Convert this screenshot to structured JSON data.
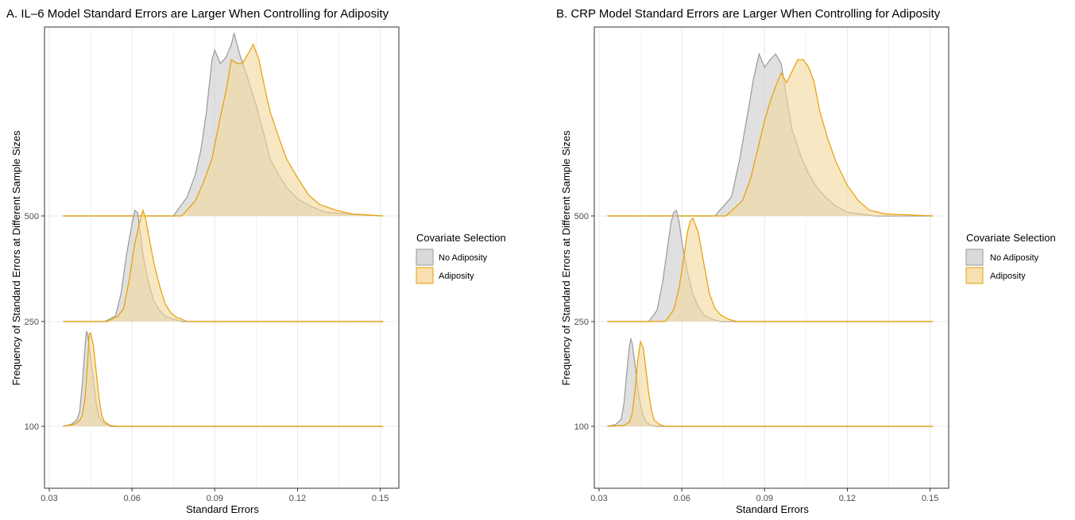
{
  "chart_data": [
    {
      "type": "ridgeline-density",
      "title": "A. IL–6 Model Standard Errors are Larger When Controlling for Adiposity",
      "xlabel": "Standard Errors",
      "ylabel": "Frequency of Standard Errors at Different Sample Sizes",
      "xlim": [
        0.03,
        0.155
      ],
      "x_ticks": [
        "0.03",
        "0.06",
        "0.09",
        "0.12",
        "0.15"
      ],
      "x_tick_values": [
        0.03,
        0.06,
        0.09,
        0.12,
        0.15
      ],
      "y_ticks": [
        "100",
        "250",
        "500"
      ],
      "grid": true,
      "legend_position": "right",
      "groups": [
        {
          "label": "500",
          "series": [
            {
              "name": "No Adiposity",
              "x": [
                0.035,
                0.038,
                0.04,
                0.041,
                0.042,
                0.043,
                0.0435,
                0.044,
                0.045,
                0.046,
                0.047,
                0.048,
                0.05,
                0.052,
                0.151
              ],
              "y": [
                0,
                0.02,
                0.07,
                0.15,
                0.45,
                0.85,
                1.0,
                0.95,
                0.72,
                0.48,
                0.25,
                0.1,
                0.03,
                0,
                0
              ]
            },
            {
              "name": "Adiposity",
              "x": [
                0.035,
                0.039,
                0.041,
                0.042,
                0.043,
                0.044,
                0.0445,
                0.045,
                0.046,
                0.047,
                0.048,
                0.049,
                0.05,
                0.052,
                0.055,
                0.151
              ],
              "y": [
                0,
                0.02,
                0.06,
                0.12,
                0.3,
                0.72,
                0.97,
                0.98,
                0.85,
                0.58,
                0.3,
                0.12,
                0.05,
                0.01,
                0,
                0
              ]
            }
          ]
        },
        {
          "label": "250",
          "series": [
            {
              "name": "No Adiposity",
              "x": [
                0.035,
                0.05,
                0.054,
                0.056,
                0.058,
                0.06,
                0.061,
                0.062,
                0.063,
                0.064,
                0.066,
                0.068,
                0.07,
                0.072,
                0.074,
                0.078,
                0.151
              ],
              "y": [
                0,
                0,
                0.05,
                0.25,
                0.6,
                0.88,
                1.0,
                0.98,
                0.8,
                0.6,
                0.35,
                0.18,
                0.1,
                0.05,
                0.03,
                0,
                0
              ]
            },
            {
              "name": "Adiposity",
              "x": [
                0.035,
                0.051,
                0.055,
                0.057,
                0.059,
                0.061,
                0.063,
                0.064,
                0.065,
                0.066,
                0.068,
                0.07,
                0.072,
                0.074,
                0.076,
                0.08,
                0.151
              ],
              "y": [
                0,
                0,
                0.05,
                0.12,
                0.38,
                0.7,
                0.92,
                1.0,
                0.92,
                0.78,
                0.52,
                0.32,
                0.16,
                0.08,
                0.04,
                0,
                0
              ]
            }
          ]
        },
        {
          "label": "100",
          "series": [
            {
              "name": "No Adiposity",
              "x": [
                0.035,
                0.075,
                0.08,
                0.083,
                0.085,
                0.087,
                0.089,
                0.09,
                0.092,
                0.094,
                0.096,
                0.097,
                0.099,
                0.102,
                0.105,
                0.108,
                0.11,
                0.113,
                0.116,
                0.12,
                0.125,
                0.13,
                0.138,
                0.151
              ],
              "y": [
                0,
                0,
                0.1,
                0.22,
                0.35,
                0.55,
                0.82,
                0.87,
                0.8,
                0.83,
                0.9,
                0.96,
                0.85,
                0.72,
                0.58,
                0.42,
                0.3,
                0.22,
                0.15,
                0.09,
                0.05,
                0.02,
                0.01,
                0
              ]
            },
            {
              "name": "Adiposity",
              "x": [
                0.035,
                0.078,
                0.083,
                0.086,
                0.089,
                0.092,
                0.094,
                0.096,
                0.098,
                0.1,
                0.102,
                0.104,
                0.106,
                0.108,
                0.11,
                0.113,
                0.116,
                0.12,
                0.124,
                0.128,
                0.134,
                0.14,
                0.151
              ],
              "y": [
                0,
                0,
                0.08,
                0.18,
                0.3,
                0.52,
                0.65,
                0.82,
                0.8,
                0.8,
                0.85,
                0.9,
                0.82,
                0.68,
                0.55,
                0.42,
                0.3,
                0.2,
                0.11,
                0.06,
                0.03,
                0.01,
                0
              ]
            }
          ]
        }
      ]
    },
    {
      "type": "ridgeline-density",
      "title": "B. CRP Model Standard Errors are Larger When Controlling for Adiposity",
      "xlabel": "Standard Errors",
      "ylabel": "Frequency of Standard Errors at Different Sample Sizes",
      "xlim": [
        0.03,
        0.155
      ],
      "x_ticks": [
        "0.03",
        "0.06",
        "0.09",
        "0.12",
        "0.15"
      ],
      "x_tick_values": [
        0.03,
        0.06,
        0.09,
        0.12,
        0.15
      ],
      "y_ticks": [
        "100",
        "250",
        "500"
      ],
      "grid": true,
      "legend_position": "right",
      "groups": [
        {
          "label": "500",
          "series": [
            {
              "name": "No Adiposity",
              "x": [
                0.033,
                0.036,
                0.038,
                0.039,
                0.04,
                0.041,
                0.0415,
                0.042,
                0.043,
                0.044,
                0.045,
                0.046,
                0.047,
                0.049,
                0.051,
                0.151
              ],
              "y": [
                0,
                0.02,
                0.08,
                0.25,
                0.6,
                0.92,
                1.0,
                0.95,
                0.72,
                0.45,
                0.25,
                0.12,
                0.05,
                0.01,
                0,
                0
              ]
            },
            {
              "name": "Adiposity",
              "x": [
                0.033,
                0.039,
                0.041,
                0.042,
                0.043,
                0.044,
                0.045,
                0.046,
                0.047,
                0.048,
                0.049,
                0.05,
                0.052,
                0.054,
                0.151
              ],
              "y": [
                0,
                0.01,
                0.05,
                0.15,
                0.4,
                0.75,
                0.97,
                0.9,
                0.65,
                0.38,
                0.18,
                0.07,
                0.02,
                0,
                0
              ]
            }
          ]
        },
        {
          "label": "250",
          "series": [
            {
              "name": "No Adiposity",
              "x": [
                0.033,
                0.048,
                0.051,
                0.053,
                0.055,
                0.056,
                0.057,
                0.058,
                0.059,
                0.06,
                0.062,
                0.064,
                0.066,
                0.068,
                0.071,
                0.074,
                0.151
              ],
              "y": [
                0,
                0,
                0.1,
                0.35,
                0.7,
                0.88,
                0.98,
                1.0,
                0.9,
                0.72,
                0.45,
                0.25,
                0.13,
                0.06,
                0.02,
                0,
                0
              ]
            },
            {
              "name": "Adiposity",
              "x": [
                0.033,
                0.054,
                0.057,
                0.059,
                0.061,
                0.062,
                0.063,
                0.064,
                0.066,
                0.068,
                0.07,
                0.072,
                0.074,
                0.077,
                0.08,
                0.151
              ],
              "y": [
                0,
                0,
                0.1,
                0.3,
                0.62,
                0.8,
                0.9,
                0.93,
                0.8,
                0.52,
                0.25,
                0.12,
                0.06,
                0.02,
                0,
                0
              ]
            }
          ]
        },
        {
          "label": "100",
          "series": [
            {
              "name": "No Adiposity",
              "x": [
                0.033,
                0.072,
                0.078,
                0.081,
                0.084,
                0.086,
                0.088,
                0.09,
                0.092,
                0.094,
                0.096,
                0.098,
                0.1,
                0.103,
                0.106,
                0.109,
                0.112,
                0.116,
                0.12,
                0.125,
                0.13,
                0.151
              ],
              "y": [
                0,
                0,
                0.1,
                0.3,
                0.55,
                0.72,
                0.85,
                0.78,
                0.82,
                0.85,
                0.8,
                0.62,
                0.45,
                0.32,
                0.22,
                0.15,
                0.1,
                0.05,
                0.02,
                0.01,
                0,
                0
              ]
            },
            {
              "name": "Adiposity",
              "x": [
                0.033,
                0.076,
                0.082,
                0.085,
                0.088,
                0.09,
                0.092,
                0.094,
                0.096,
                0.098,
                0.1,
                0.102,
                0.104,
                0.106,
                0.108,
                0.11,
                0.113,
                0.116,
                0.12,
                0.124,
                0.128,
                0.134,
                0.151
              ],
              "y": [
                0,
                0,
                0.08,
                0.2,
                0.38,
                0.5,
                0.6,
                0.68,
                0.75,
                0.7,
                0.76,
                0.82,
                0.82,
                0.78,
                0.7,
                0.55,
                0.4,
                0.28,
                0.16,
                0.08,
                0.03,
                0.01,
                0
              ]
            }
          ]
        }
      ]
    }
  ],
  "legend": {
    "title": "Covariate Selection",
    "items": [
      {
        "label": "No Adiposity",
        "fill": "#d9d9d9",
        "stroke": "#999999"
      },
      {
        "label": "Adiposity",
        "fill": "#f7dfb0",
        "stroke": "#e69f00"
      }
    ]
  },
  "colors": {
    "no_adiposity_fill": "#cccccc",
    "no_adiposity_stroke": "#999999",
    "adiposity_fill": "#f3d79b",
    "adiposity_stroke": "#e69f00",
    "grid": "#ebebeb"
  }
}
